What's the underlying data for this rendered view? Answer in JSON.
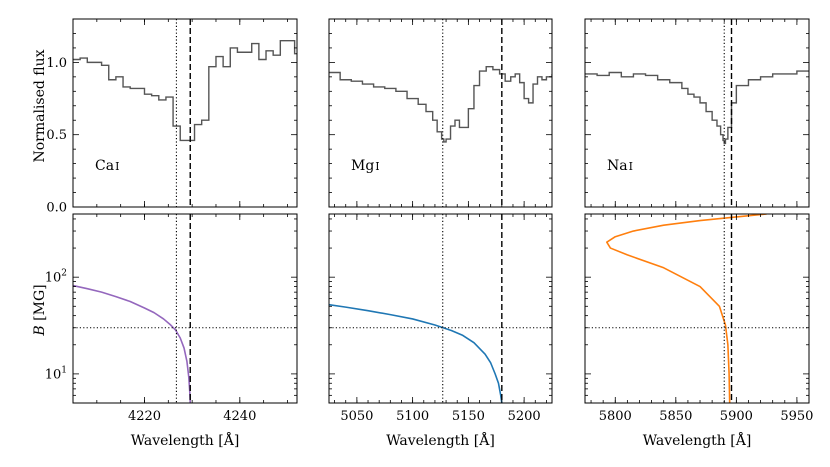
{
  "chart_data": {
    "type": "line",
    "figure_layout": "2 rows x 3 columns; top row shares y-axis 'Normalised flux' (linear); bottom row shares y-axis 'B [MG]' (log)",
    "shared_labels": {
      "top_ylabel": "Normalised flux",
      "bottom_ylabel_italic": "B",
      "bottom_ylabel_unit": " [MG]",
      "xlabel": "Wavelength [Å]"
    },
    "top_ylim": [
      0.0,
      1.3
    ],
    "top_yticks": [
      0.0,
      0.5,
      1.0
    ],
    "top_ytick_labels": [
      "0.0",
      "0.5",
      "1.0"
    ],
    "bottom_ylim": [
      5,
      450
    ],
    "bottom_ytick_labels": [
      {
        "value": 10,
        "base": "10",
        "exp": "1"
      },
      {
        "value": 100,
        "base": "10",
        "exp": "2"
      }
    ],
    "horizontal_reference_B": 30,
    "panels": [
      {
        "element": "Ca",
        "ion": "I",
        "xlim": [
          4205,
          4252
        ],
        "xticks": [
          4220,
          4240
        ],
        "xtick_labels": [
          "4220",
          "4240"
        ],
        "dotted_line_x": 4226.7,
        "dashed_line_x": 4229.6,
        "curve_color": "#9467bd",
        "spectrum": {
          "x": [
            4205,
            4206.5,
            4208,
            4209.5,
            4211,
            4212.5,
            4214,
            4215.5,
            4217,
            4218.5,
            4220,
            4221.5,
            4223,
            4224.5,
            4226,
            4227.5,
            4229,
            4230.5,
            4232,
            4233.5,
            4235,
            4236.5,
            4238,
            4239.5,
            4241,
            4242.5,
            4244,
            4245.5,
            4247,
            4248.5,
            4250,
            4251.5,
            4252
          ],
          "y": [
            1.02,
            1.03,
            1.0,
            1.0,
            0.98,
            0.88,
            0.9,
            0.83,
            0.82,
            0.82,
            0.78,
            0.77,
            0.74,
            0.76,
            0.56,
            0.46,
            0.46,
            0.57,
            0.6,
            0.97,
            1.04,
            0.97,
            1.1,
            1.07,
            1.07,
            1.13,
            1.02,
            1.08,
            1.05,
            1.15,
            1.15,
            1.06,
            1.06
          ]
        },
        "B_curve": {
          "lambda": [
            4205,
            4208,
            4211,
            4214,
            4217,
            4220,
            4222,
            4224,
            4225.5,
            4226.5,
            4227.5,
            4228.3,
            4228.9,
            4229.3,
            4229.5,
            4229.6
          ],
          "B": [
            82,
            76,
            70,
            63,
            56,
            48,
            43,
            37,
            32,
            28.5,
            23.5,
            18.5,
            13.5,
            9.2,
            6.5,
            5
          ]
        }
      },
      {
        "element": "Mg",
        "ion": "I",
        "xlim": [
          5025,
          5225
        ],
        "xticks": [
          5050,
          5100,
          5150,
          5200
        ],
        "xtick_labels": [
          "5050",
          "5100",
          "5150",
          "5200"
        ],
        "dotted_line_x": 5127,
        "dashed_line_x": 5180,
        "curve_color": "#1f77b4",
        "spectrum": {
          "x": [
            5025,
            5035,
            5045,
            5055,
            5065,
            5075,
            5085,
            5095,
            5105,
            5112,
            5118,
            5122,
            5126,
            5128,
            5130,
            5134,
            5138,
            5142,
            5146,
            5150,
            5155,
            5160,
            5166,
            5172,
            5178,
            5183,
            5188,
            5192,
            5196,
            5200,
            5204,
            5208,
            5212,
            5216,
            5220,
            5225
          ],
          "y": [
            0.93,
            0.88,
            0.87,
            0.85,
            0.83,
            0.82,
            0.8,
            0.75,
            0.71,
            0.66,
            0.6,
            0.52,
            0.47,
            0.45,
            0.47,
            0.56,
            0.6,
            0.55,
            0.55,
            0.68,
            0.84,
            0.94,
            0.97,
            0.95,
            0.92,
            0.87,
            0.9,
            0.92,
            0.86,
            0.75,
            0.72,
            0.85,
            0.9,
            0.88,
            0.9,
            0.92
          ]
        },
        "B_curve": {
          "lambda": [
            5025,
            5040,
            5060,
            5080,
            5100,
            5120,
            5135,
            5145,
            5155,
            5165,
            5170,
            5174,
            5177,
            5179,
            5180
          ],
          "B": [
            52,
            49,
            45,
            41,
            37,
            32,
            28,
            25,
            21,
            16,
            13,
            10,
            8,
            6,
            5
          ]
        }
      },
      {
        "element": "Na",
        "ion": "I",
        "xlim": [
          5775,
          5960
        ],
        "xticks": [
          5800,
          5850,
          5900,
          5950
        ],
        "xtick_labels": [
          "5800",
          "5850",
          "5900",
          "5950"
        ],
        "dotted_line_x": 5890,
        "dashed_line_x": 5896,
        "curve_color": "#ff7f0e",
        "spectrum": {
          "x": [
            5775,
            5785,
            5795,
            5805,
            5815,
            5825,
            5835,
            5845,
            5855,
            5860,
            5865,
            5870,
            5875,
            5880,
            5884,
            5887,
            5889,
            5890,
            5891,
            5893,
            5896,
            5900,
            5910,
            5920,
            5930,
            5940,
            5950,
            5960
          ],
          "y": [
            0.92,
            0.91,
            0.93,
            0.9,
            0.92,
            0.91,
            0.88,
            0.86,
            0.82,
            0.78,
            0.76,
            0.72,
            0.66,
            0.6,
            0.56,
            0.5,
            0.46,
            0.44,
            0.47,
            0.55,
            0.72,
            0.84,
            0.88,
            0.9,
            0.92,
            0.92,
            0.94,
            0.94
          ]
        },
        "B_curve": {
          "lambda": [
            5925,
            5900,
            5870,
            5840,
            5815,
            5800,
            5793,
            5796,
            5810,
            5840,
            5870,
            5886,
            5891,
            5893,
            5894,
            5894.5
          ],
          "B": [
            450,
            420,
            385,
            345,
            300,
            262,
            230,
            200,
            170,
            125,
            80,
            50,
            32,
            20,
            10,
            5
          ]
        }
      }
    ]
  }
}
